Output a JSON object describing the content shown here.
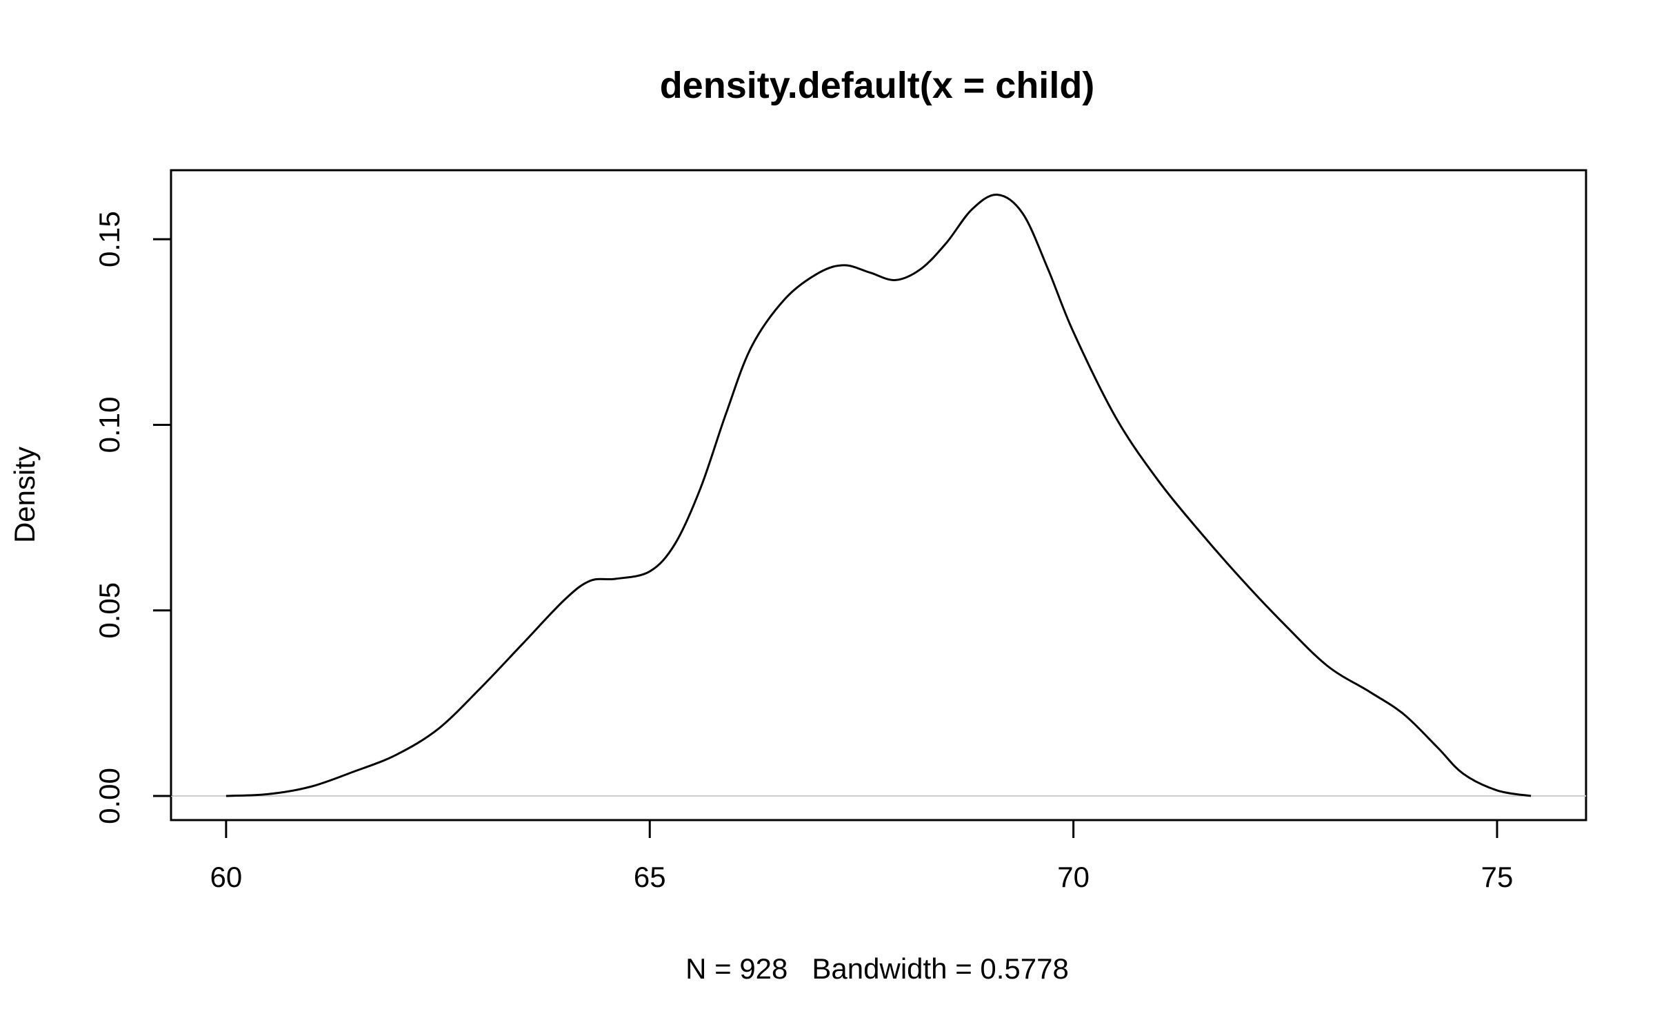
{
  "chart_data": {
    "type": "line",
    "title": "density.default(x = child)",
    "xlabel": "N = 928   Bandwidth = 0.5778",
    "ylabel": "Density",
    "xlim": [
      59.35,
      76.05
    ],
    "ylim": [
      -0.0065,
      0.1686
    ],
    "x_ticks": [
      60,
      65,
      70,
      75
    ],
    "x_tick_labels": [
      "60",
      "65",
      "70",
      "75"
    ],
    "y_ticks": [
      0.0,
      0.05,
      0.1,
      0.15
    ],
    "y_tick_labels": [
      "0.00",
      "0.05",
      "0.10",
      "0.15"
    ],
    "baseline": 0,
    "baseline_color": "#cccccc",
    "line_color": "#000000",
    "grid": false,
    "legend": "none",
    "series": [
      {
        "x": [
          60.0,
          60.5,
          61.0,
          61.5,
          62.0,
          62.5,
          63.0,
          63.5,
          64.0,
          64.3,
          64.6,
          65.0,
          65.3,
          65.6,
          65.9,
          66.2,
          66.6,
          67.0,
          67.3,
          67.6,
          67.9,
          68.2,
          68.5,
          68.8,
          69.1,
          69.4,
          69.7,
          70.0,
          70.5,
          71.0,
          71.5,
          72.0,
          72.5,
          73.0,
          73.5,
          73.9,
          74.3,
          74.6,
          75.0,
          75.4
        ],
        "values": [
          0.0,
          0.0005,
          0.0025,
          0.0065,
          0.011,
          0.018,
          0.029,
          0.041,
          0.053,
          0.058,
          0.0585,
          0.0605,
          0.068,
          0.083,
          0.103,
          0.121,
          0.134,
          0.141,
          0.143,
          0.141,
          0.139,
          0.142,
          0.149,
          0.158,
          0.162,
          0.157,
          0.142,
          0.125,
          0.102,
          0.085,
          0.071,
          0.058,
          0.046,
          0.035,
          0.028,
          0.022,
          0.013,
          0.006,
          0.0015,
          0.0
        ]
      }
    ]
  }
}
